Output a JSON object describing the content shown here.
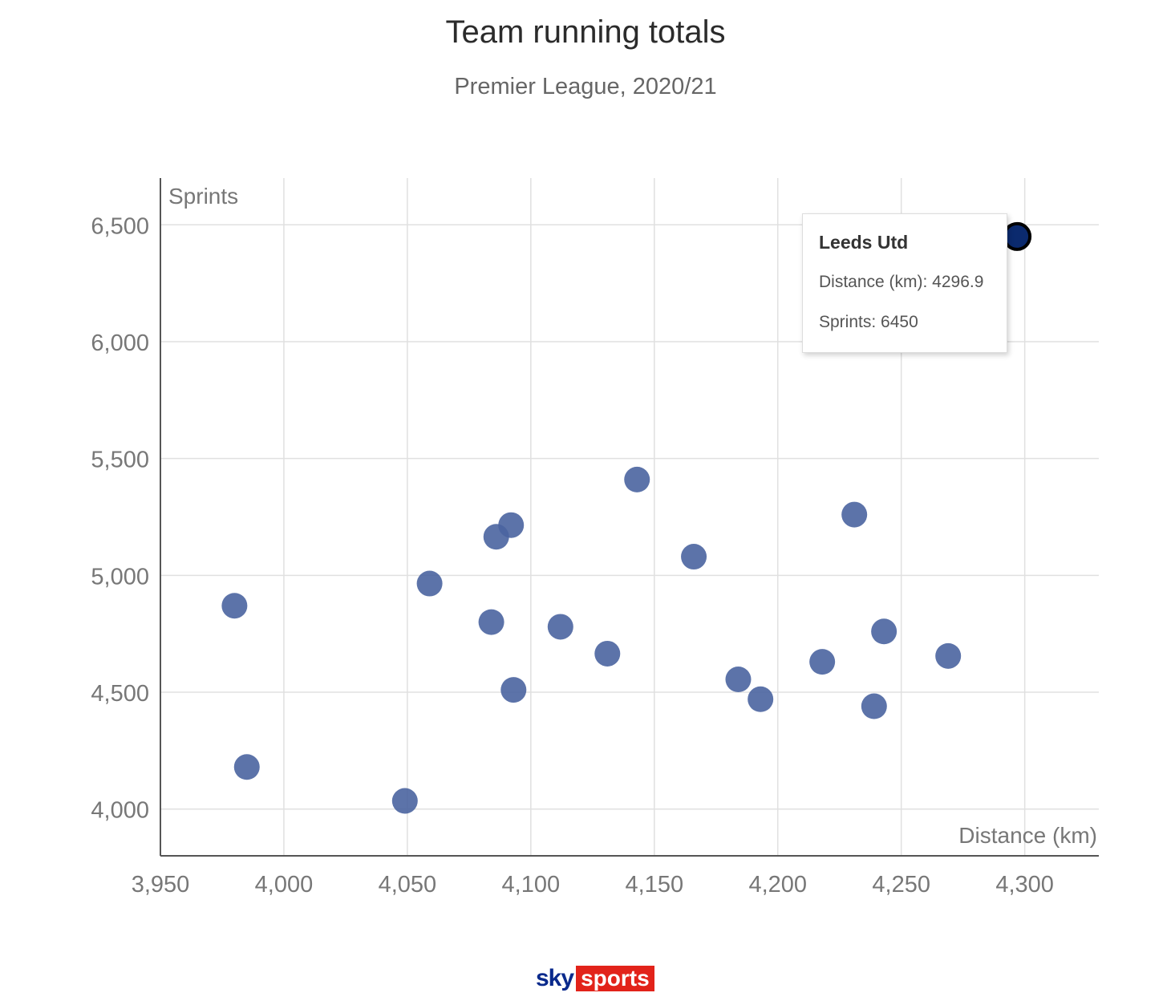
{
  "chart_data": {
    "type": "scatter",
    "title": "Team running totals",
    "subtitle": "Premier League, 2020/21",
    "xlabel": "Distance (km)",
    "ylabel": "Sprints",
    "xlim": [
      3950,
      4330
    ],
    "ylim": [
      3800,
      6700
    ],
    "xticks": [
      3950,
      4000,
      4050,
      4100,
      4150,
      4200,
      4250,
      4300
    ],
    "yticks": [
      4000,
      4500,
      5000,
      5500,
      6000,
      6500
    ],
    "xtick_labels": [
      "3,950",
      "4,000",
      "4,050",
      "4,100",
      "4,150",
      "4,200",
      "4,250",
      "4,300"
    ],
    "ytick_labels": [
      "4,000",
      "4,500",
      "5,000",
      "5,500",
      "6,000",
      "6,500"
    ],
    "grid": true,
    "series": [
      {
        "points": [
          {
            "x": 3980,
            "y": 4870
          },
          {
            "x": 3985,
            "y": 4180
          },
          {
            "x": 4049,
            "y": 4035
          },
          {
            "x": 4059,
            "y": 4965
          },
          {
            "x": 4084,
            "y": 4800
          },
          {
            "x": 4086,
            "y": 5165
          },
          {
            "x": 4092,
            "y": 5215
          },
          {
            "x": 4093,
            "y": 4510
          },
          {
            "x": 4112,
            "y": 4780
          },
          {
            "x": 4131,
            "y": 4665
          },
          {
            "x": 4143,
            "y": 5410
          },
          {
            "x": 4166,
            "y": 5080
          },
          {
            "x": 4184,
            "y": 4555
          },
          {
            "x": 4193,
            "y": 4470
          },
          {
            "x": 4218,
            "y": 4630
          },
          {
            "x": 4231,
            "y": 5260
          },
          {
            "x": 4239,
            "y": 4440
          },
          {
            "x": 4243,
            "y": 4760
          },
          {
            "x": 4269,
            "y": 4655
          },
          {
            "x": 4296.9,
            "y": 6450,
            "highlight": true
          }
        ]
      }
    ],
    "colors": {
      "point": "#4a64a0",
      "highlight": "#0b2a6e",
      "highlight_stroke": "#000000"
    },
    "tooltip": {
      "title": "Leeds Utd",
      "distance_label": "Distance (km): 4296.9",
      "sprints_label": "Sprints: 6450"
    }
  },
  "brand": {
    "sky": "sky",
    "sports": "sports"
  }
}
